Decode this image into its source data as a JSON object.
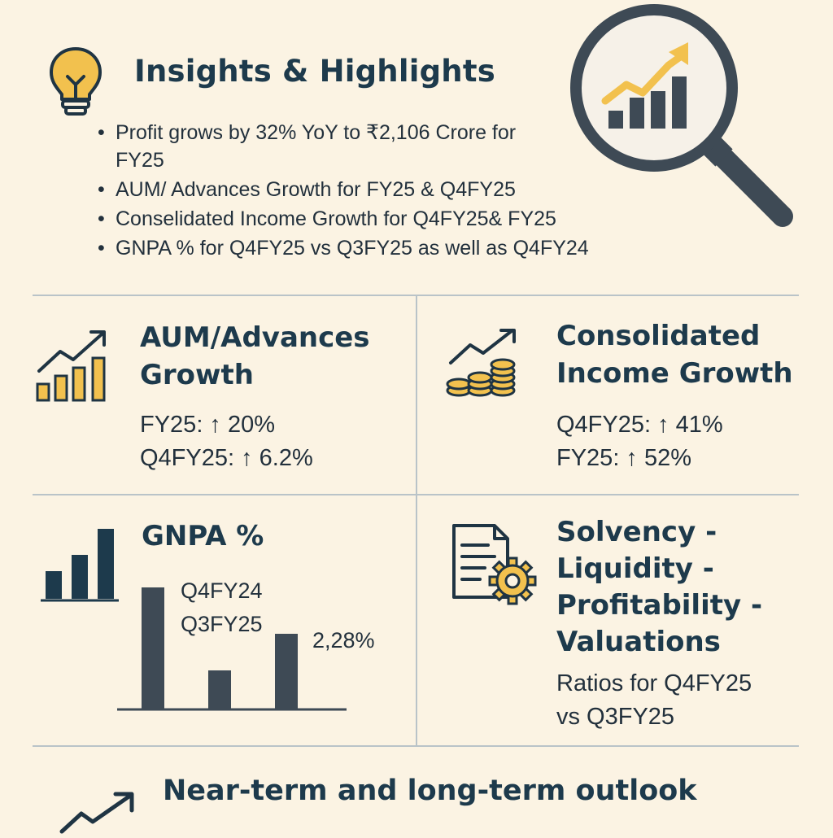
{
  "header": {
    "title": "Insights & Highlights",
    "bullets": [
      "Profit grows by 32% YoY to ₹2,106 Crore for FY25",
      "AUM/ Advances Growth for FY25 & Q4FY25",
      "Conselidated Income Growth for Q4FY25& FY25",
      "GNPA % for Q4FY25 vs Q3FY25 as well as Q4FY24"
    ]
  },
  "cards": {
    "aum": {
      "title_line1": "AUM/Advances",
      "title_line2": "Growth",
      "stat1": "FY25: ↑ 20%",
      "stat2": "Q4FY25: ↑ 6.2%"
    },
    "income": {
      "title_line1": "Consolidated",
      "title_line2": "Income Growth",
      "stat1": "Q4FY25: ↑ 41%",
      "stat2": "FY25: ↑ 52%"
    },
    "gnpa": {
      "title": "GNPA %",
      "label1": "Q4FY24",
      "label2": "Q3FY25",
      "value": "2,28%",
      "bar_levels": [
        1.0,
        0.32,
        0.62
      ]
    },
    "ratios": {
      "title_line1": "Solvency -",
      "title_line2": "Liquidity -",
      "title_line3": "Profitability -",
      "title_line4": "Valuations",
      "desc_line1": "Ratios for Q4FY25",
      "desc_line2": "vs Q3FY25"
    }
  },
  "footer": {
    "title": "Near-term and long-term outlook"
  },
  "colors": {
    "background": "#fbf3e3",
    "navy": "#1d3a4c",
    "gold": "#f2c14e",
    "slate": "#3e4a55"
  },
  "icons": {
    "header": "lightbulb-icon",
    "header_right": "magnifier-chart-icon",
    "aum": "bar-growth-icon",
    "income": "coins-growth-icon",
    "gnpa": "bar-chart-icon",
    "ratios": "document-gear-icon",
    "footer": "trend-arrow-icon"
  }
}
